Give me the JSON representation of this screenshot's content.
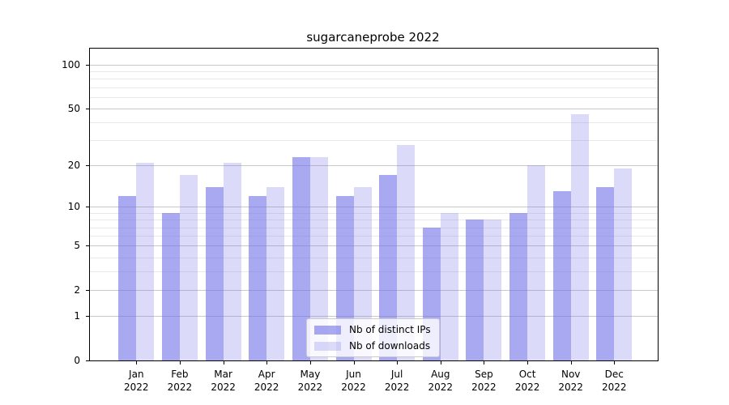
{
  "chart_data": {
    "type": "bar",
    "title": "sugarcaneprobe 2022",
    "categories": [
      "Jan",
      "Feb",
      "Mar",
      "Apr",
      "May",
      "Jun",
      "Jul",
      "Aug",
      "Sep",
      "Oct",
      "Nov",
      "Dec"
    ],
    "category_year": "2022",
    "series": [
      {
        "name": "Nb of distinct IPs",
        "color": "rgba(112,112,232,0.60)",
        "values": [
          12,
          9,
          14,
          12,
          23,
          12,
          17,
          7,
          8,
          9,
          13,
          14
        ]
      },
      {
        "name": "Nb of downloads",
        "color": "rgba(112,112,232,0.25)",
        "values": [
          21,
          17,
          21,
          14,
          23,
          14,
          28,
          9,
          8,
          20,
          46,
          19
        ]
      }
    ],
    "yscale": "log1p",
    "ylim": [
      0,
      129
    ],
    "yticks": [
      0,
      1,
      2,
      5,
      10,
      20,
      50,
      100
    ],
    "minor_ticks": [
      3,
      4,
      6,
      7,
      8,
      9,
      30,
      40,
      60,
      70,
      80,
      90
    ],
    "grid": true,
    "legend_position": "lower center",
    "background": "#ffffff"
  }
}
